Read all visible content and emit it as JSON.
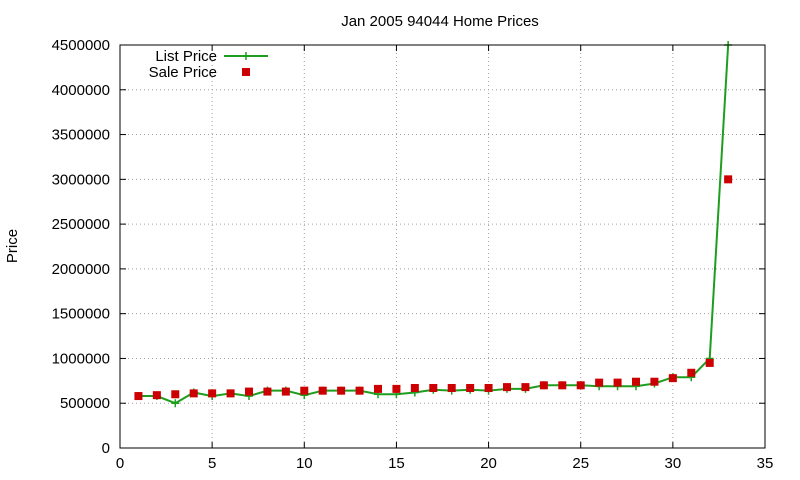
{
  "chart_data": {
    "type": "line",
    "title": "Jan 2005 94044 Home Prices",
    "xlabel": "",
    "ylabel": "Price",
    "xlim": [
      0,
      35
    ],
    "ylim": [
      0,
      4500000
    ],
    "xticks": [
      0,
      5,
      10,
      15,
      20,
      25,
      30,
      35
    ],
    "yticks": [
      0,
      500000,
      1000000,
      1500000,
      2000000,
      2500000,
      3000000,
      3500000,
      4000000,
      4500000
    ],
    "grid": true,
    "legend_position": "top-left",
    "series": [
      {
        "name": "List Price",
        "style": "line+plus",
        "color": "#1e9e1e",
        "x": [
          1,
          2,
          3,
          4,
          5,
          6,
          7,
          8,
          9,
          10,
          11,
          12,
          13,
          14,
          15,
          16,
          17,
          18,
          19,
          20,
          21,
          22,
          23,
          24,
          25,
          26,
          27,
          28,
          29,
          30,
          31,
          32,
          33
        ],
        "values": [
          580000,
          580000,
          500000,
          620000,
          580000,
          610000,
          580000,
          640000,
          640000,
          590000,
          640000,
          640000,
          640000,
          600000,
          600000,
          620000,
          650000,
          640000,
          650000,
          640000,
          660000,
          660000,
          700000,
          700000,
          700000,
          690000,
          690000,
          690000,
          720000,
          790000,
          790000,
          1000000,
          4500000
        ]
      },
      {
        "name": "Sale Price",
        "style": "square",
        "color": "#cc0000",
        "x": [
          1,
          2,
          3,
          4,
          5,
          6,
          7,
          8,
          9,
          10,
          11,
          12,
          13,
          14,
          15,
          16,
          17,
          18,
          19,
          20,
          21,
          22,
          23,
          24,
          25,
          26,
          27,
          28,
          29,
          30,
          31,
          32,
          33
        ],
        "values": [
          580000,
          590000,
          600000,
          610000,
          610000,
          610000,
          630000,
          630000,
          630000,
          640000,
          640000,
          640000,
          640000,
          660000,
          660000,
          670000,
          670000,
          670000,
          670000,
          670000,
          680000,
          680000,
          700000,
          700000,
          700000,
          730000,
          730000,
          740000,
          740000,
          780000,
          840000,
          950000,
          3000000
        ]
      }
    ]
  }
}
